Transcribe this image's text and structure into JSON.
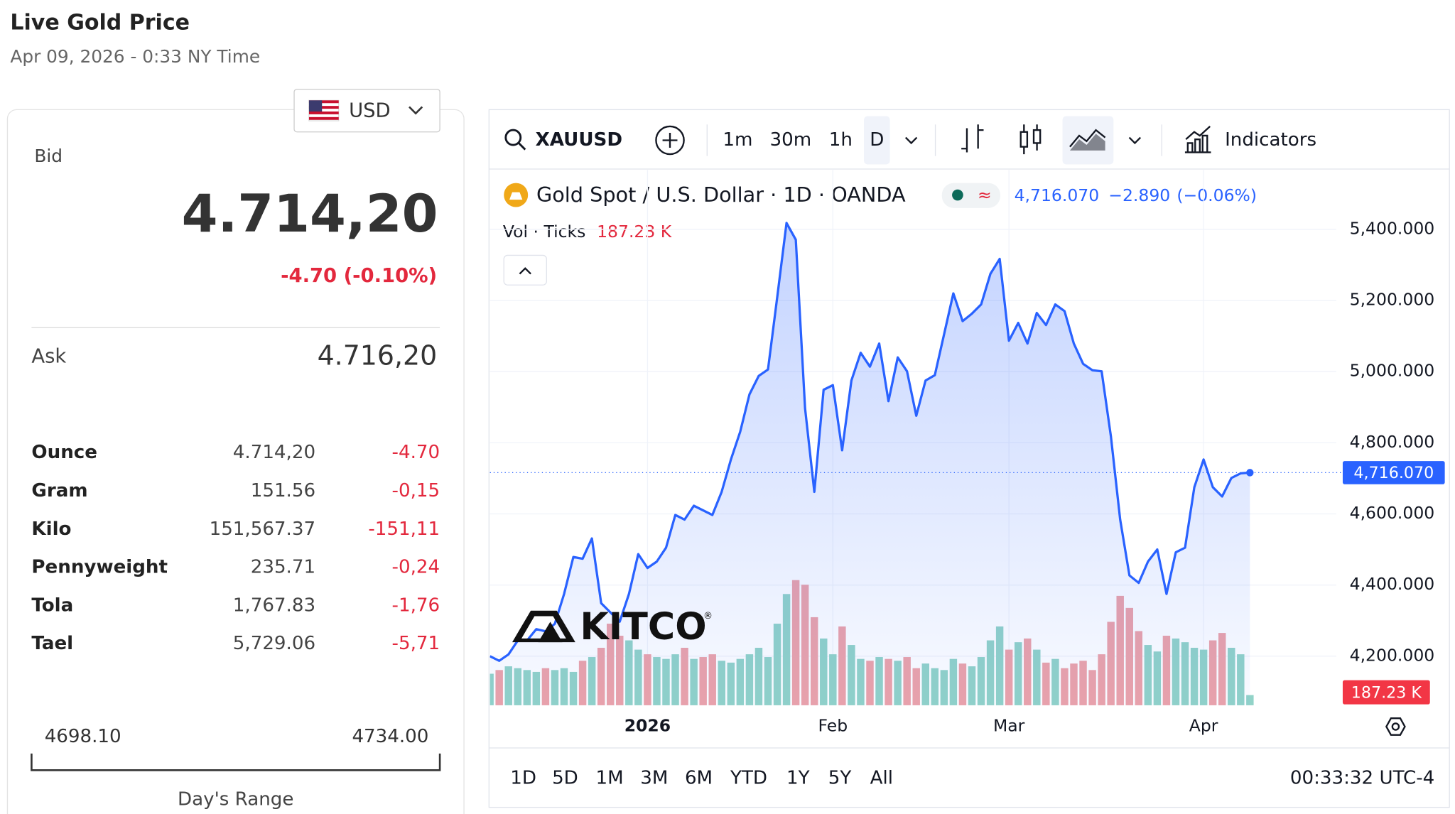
{
  "header": {
    "title": "Live Gold Price",
    "subtitle": "Apr 09, 2026 - 0:33 NY Time",
    "currency": "USD"
  },
  "price_panel": {
    "bid_label": "Bid",
    "bid": "4.714,20",
    "bid_change": "-4.70 (-0.10%)",
    "ask_label": "Ask",
    "ask": "4.716,20",
    "units": [
      {
        "name": "Ounce",
        "price": "4.714,20",
        "change": "-4.70"
      },
      {
        "name": "Gram",
        "price": "151.56",
        "change": "-0,15"
      },
      {
        "name": "Kilo",
        "price": "151,567.37",
        "change": "-151,11"
      },
      {
        "name": "Pennyweight",
        "price": "235.71",
        "change": "-0,24"
      },
      {
        "name": "Tola",
        "price": "1,767.83",
        "change": "-1,76"
      },
      {
        "name": "Tael",
        "price": "5,729.06",
        "change": "-5,71"
      }
    ],
    "range_low": "4698.10",
    "range_high": "4734.00",
    "range_label": "Day's Range"
  },
  "toolbar": {
    "symbol": "XAUUSD",
    "intervals": [
      "1m",
      "30m",
      "1h",
      "D"
    ],
    "indicators": "Indicators"
  },
  "chart_data": {
    "type": "line",
    "categories": [
      null,
      null,
      null,
      null,
      null,
      null,
      null,
      null,
      null,
      null,
      null,
      null,
      null,
      null,
      null,
      null,
      null,
      "2026",
      null,
      null,
      null,
      null,
      null,
      null,
      null,
      null,
      null,
      null,
      null,
      null,
      null,
      null,
      null,
      null,
      null,
      null,
      null,
      "Feb",
      null,
      null,
      null,
      null,
      null,
      null,
      null,
      null,
      null,
      null,
      null,
      null,
      null,
      null,
      null,
      null,
      null,
      null,
      "Mar",
      null,
      null,
      null,
      null,
      null,
      null,
      null,
      null,
      null,
      null,
      null,
      null,
      null,
      null,
      null,
      null,
      null,
      null,
      null,
      null,
      "Apr",
      null,
      null,
      null,
      null,
      null
    ],
    "series": [
      {
        "name": "Gold Spot / U.S. Dollar · 1D · OANDA",
        "color": "#2962ff",
        "last_value_label": "4,716.070",
        "values": [
          4200,
          4187,
          4205,
          4244,
          4244,
          4276,
          4270,
          4291,
          4375,
          4479,
          4474,
          4531,
          4349,
          4323,
          4297,
          4375,
          4487,
          4448,
          4466,
          4505,
          4597,
          4584,
          4623,
          4610,
          4597,
          4662,
          4753,
          4831,
          4936,
          4988,
          5006,
          5210,
          5418,
          5371,
          4897,
          4662,
          4949,
          4962,
          4779,
          4975,
          5053,
          5014,
          5079,
          4917,
          5040,
          5001,
          4876,
          4975,
          4990,
          5105,
          5220,
          5142,
          5163,
          5189,
          5275,
          5317,
          5087,
          5137,
          5079,
          5165,
          5131,
          5189,
          5170,
          5079,
          5022,
          5004,
          5001,
          4818,
          4584,
          4427,
          4406,
          4466,
          4500,
          4375,
          4492,
          4505,
          4675,
          4753,
          4675,
          4649,
          4701,
          4714,
          4716.07
        ]
      }
    ],
    "change": "−2.890",
    "change_pct": "(−0.06%)",
    "volume": {
      "name": "Vol · Ticks",
      "last_value_label": "187.23 K",
      "up_color": "#92d3c8",
      "down_color": "#eda3a9",
      "ylim": [
        0,
        3300
      ],
      "values": [
        578,
        646,
        714,
        680,
        646,
        612,
        680,
        646,
        680,
        612,
        816,
        884,
        1054,
        1496,
        1275,
        1190,
        1020,
        935,
        884,
        850,
        935,
        1054,
        850,
        884,
        935,
        816,
        782,
        850,
        935,
        1054,
        884,
        1496,
        2040,
        2295,
        2210,
        1615,
        1224,
        935,
        1445,
        1105,
        850,
        816,
        884,
        850,
        816,
        884,
        680,
        765,
        680,
        646,
        850,
        765,
        714,
        884,
        1190,
        1445,
        1020,
        1156,
        1224,
        1020,
        782,
        850,
        680,
        765,
        816,
        646,
        935,
        1530,
        2006,
        1785,
        1360,
        1105,
        986,
        1275,
        1224,
        1156,
        1054,
        1020,
        1190,
        1326,
        1054,
        935,
        187.23
      ]
    },
    "ylim": [
      4062,
      5567
    ],
    "yticks": [
      {
        "value": 4200,
        "label": "4,200.000"
      },
      {
        "value": 4400,
        "label": "4,400.000"
      },
      {
        "value": 4600,
        "label": "4,600.000"
      },
      {
        "value": 4800,
        "label": "4,800.000"
      },
      {
        "value": 5000,
        "label": "5,000.000"
      },
      {
        "value": 5200,
        "label": "5,200.000"
      },
      {
        "value": 5400,
        "label": "5,400.000"
      }
    ],
    "grid": true
  },
  "footer": {
    "ranges": [
      "1D",
      "5D",
      "1M",
      "3M",
      "6M",
      "YTD",
      "1Y",
      "5Y",
      "All"
    ],
    "clock": "00:33:32 UTC-4"
  }
}
